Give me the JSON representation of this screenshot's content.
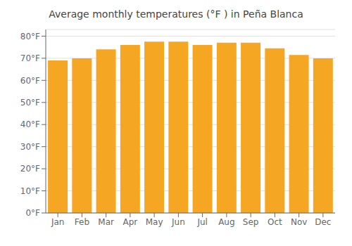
{
  "chart_data": {
    "type": "bar",
    "title": "Average monthly temperatures (°F ) in Peña Blanca",
    "categories": [
      "Jan",
      "Feb",
      "Mar",
      "Apr",
      "May",
      "Jun",
      "Jul",
      "Aug",
      "Sep",
      "Oct",
      "Nov",
      "Dec"
    ],
    "values": [
      69,
      70,
      74,
      76,
      77.5,
      77.5,
      76,
      77,
      77,
      74.5,
      71.5,
      70
    ],
    "color": "#F5A623",
    "ylim": [
      0,
      83
    ],
    "yticks": [
      {
        "value": 0,
        "label": "0°F"
      },
      {
        "value": 10,
        "label": "10°F"
      },
      {
        "value": 20,
        "label": "20°F"
      },
      {
        "value": 30,
        "label": "30°F"
      },
      {
        "value": 40,
        "label": "40°F"
      },
      {
        "value": 50,
        "label": "50°F"
      },
      {
        "value": 60,
        "label": "60°F"
      },
      {
        "value": 70,
        "label": "70°F"
      },
      {
        "value": 80,
        "label": "80°F"
      }
    ],
    "grid": true
  }
}
